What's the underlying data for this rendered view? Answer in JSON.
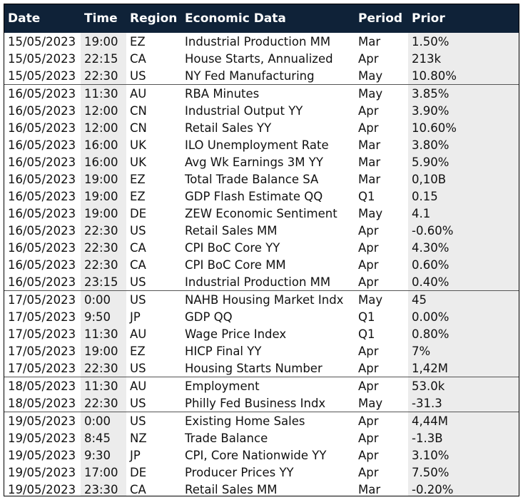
{
  "headers": {
    "date": "Date",
    "time": "Time",
    "region": "Region",
    "economic_data": "Economic Data",
    "period": "Period",
    "prior": "Prior"
  },
  "rows": [
    {
      "date": "15/05/2023",
      "time": "19:00",
      "region": "EZ",
      "economic_data": "Industrial Production MM",
      "period": "Mar",
      "prior": "1.50%",
      "group_start": true
    },
    {
      "date": "15/05/2023",
      "time": "22:15",
      "region": "CA",
      "economic_data": "House Starts, Annualized",
      "period": "Apr",
      "prior": "213k",
      "group_start": false
    },
    {
      "date": "15/05/2023",
      "time": "22:30",
      "region": "US",
      "economic_data": "NY Fed Manufacturing",
      "period": "May",
      "prior": "10.80%",
      "group_start": false
    },
    {
      "date": "16/05/2023",
      "time": "11:30",
      "region": "AU",
      "economic_data": "RBA Minutes",
      "period": "May",
      "prior": "3.85%",
      "group_start": true
    },
    {
      "date": "16/05/2023",
      "time": "12:00",
      "region": "CN",
      "economic_data": "Industrial Output YY",
      "period": "Apr",
      "prior": "3.90%",
      "group_start": false
    },
    {
      "date": "16/05/2023",
      "time": "12:00",
      "region": "CN",
      "economic_data": "Retail Sales YY",
      "period": "Apr",
      "prior": "10.60%",
      "group_start": false
    },
    {
      "date": "16/05/2023",
      "time": "16:00",
      "region": "UK",
      "economic_data": "ILO Unemployment Rate",
      "period": "Mar",
      "prior": "3.80%",
      "group_start": false
    },
    {
      "date": "16/05/2023",
      "time": "16:00",
      "region": "UK",
      "economic_data": "Avg Wk Earnings 3M YY",
      "period": "Mar",
      "prior": "5.90%",
      "group_start": false
    },
    {
      "date": "16/05/2023",
      "time": "19:00",
      "region": "EZ",
      "economic_data": "Total Trade Balance SA",
      "period": "Mar",
      "prior": "0,10B",
      "group_start": false
    },
    {
      "date": "16/05/2023",
      "time": "19:00",
      "region": "EZ",
      "economic_data": "GDP Flash Estimate QQ",
      "period": "Q1",
      "prior": "0.15",
      "group_start": false
    },
    {
      "date": "16/05/2023",
      "time": "19:00",
      "region": "DE",
      "economic_data": "ZEW Economic Sentiment",
      "period": "May",
      "prior": "4.1",
      "group_start": false
    },
    {
      "date": "16/05/2023",
      "time": "22:30",
      "region": "US",
      "economic_data": "Retail Sales MM",
      "period": "Apr",
      "prior": "-0.60%",
      "group_start": false
    },
    {
      "date": "16/05/2023",
      "time": "22:30",
      "region": "CA",
      "economic_data": "CPI BoC Core YY",
      "period": "Apr",
      "prior": "4.30%",
      "group_start": false
    },
    {
      "date": "16/05/2023",
      "time": "22:30",
      "region": "CA",
      "economic_data": "CPI BoC Core MM",
      "period": "Apr",
      "prior": "0.60%",
      "group_start": false
    },
    {
      "date": "16/05/2023",
      "time": "23:15",
      "region": "US",
      "economic_data": "Industrial Production MM",
      "period": "Apr",
      "prior": "0.40%",
      "group_start": false
    },
    {
      "date": "17/05/2023",
      "time": "0:00",
      "region": "US",
      "economic_data": "NAHB Housing Market Indx",
      "period": "May",
      "prior": "45",
      "group_start": true
    },
    {
      "date": "17/05/2023",
      "time": "9:50",
      "region": "JP",
      "economic_data": "GDP QQ",
      "period": "Q1",
      "prior": "0.00%",
      "group_start": false
    },
    {
      "date": "17/05/2023",
      "time": "11:30",
      "region": "AU",
      "economic_data": "Wage Price Index",
      "period": "Q1",
      "prior": "0.80%",
      "group_start": false
    },
    {
      "date": "17/05/2023",
      "time": "19:00",
      "region": "EZ",
      "economic_data": "HICP Final YY",
      "period": "Apr",
      "prior": "7%",
      "group_start": false
    },
    {
      "date": "17/05/2023",
      "time": "22:30",
      "region": "US",
      "economic_data": "Housing Starts Number",
      "period": "Apr",
      "prior": "1,42M",
      "group_start": false
    },
    {
      "date": "18/05/2023",
      "time": "11:30",
      "region": "AU",
      "economic_data": "Employment",
      "period": "Apr",
      "prior": "53.0k",
      "group_start": true
    },
    {
      "date": "18/05/2023",
      "time": "22:30",
      "region": "US",
      "economic_data": "Philly Fed Business Indx",
      "period": "May",
      "prior": "-31.3",
      "group_start": false
    },
    {
      "date": "19/05/2023",
      "time": "0:00",
      "region": "US",
      "economic_data": "Existing Home Sales",
      "period": "Apr",
      "prior": "4,44M",
      "group_start": true
    },
    {
      "date": "19/05/2023",
      "time": "8:45",
      "region": "NZ",
      "economic_data": "Trade Balance",
      "period": "Apr",
      "prior": "-1.3B",
      "group_start": false
    },
    {
      "date": "19/05/2023",
      "time": "9:30",
      "region": "JP",
      "economic_data": "CPI, Core Nationwide YY",
      "period": "Apr",
      "prior": "3.10%",
      "group_start": false
    },
    {
      "date": "19/05/2023",
      "time": "17:00",
      "region": "DE",
      "economic_data": "Producer Prices YY",
      "period": "Apr",
      "prior": "7.50%",
      "group_start": false
    },
    {
      "date": "19/05/2023",
      "time": "23:30",
      "region": "CA",
      "economic_data": "Retail Sales MM",
      "period": "Mar",
      "prior": "-0.20%",
      "group_start": false
    }
  ],
  "colors": {
    "header_bg": "#0f2238",
    "header_text": "#ffffff",
    "shaded_column_bg": "#ececec"
  }
}
